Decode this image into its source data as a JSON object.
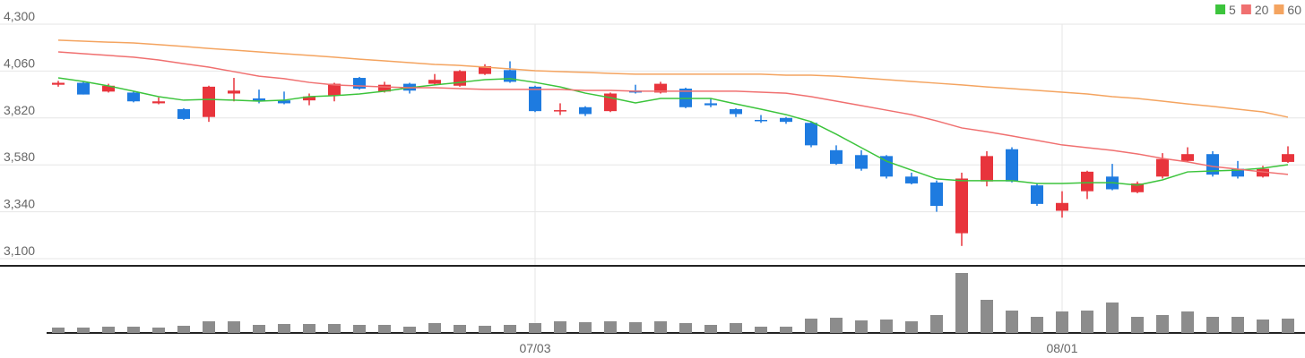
{
  "chart_data": {
    "type": "candlestick",
    "categories": [
      null,
      null,
      null,
      null,
      null,
      null,
      null,
      null,
      null,
      null,
      null,
      null,
      null,
      null,
      null,
      null,
      null,
      null,
      null,
      "07/03",
      null,
      null,
      null,
      null,
      null,
      null,
      null,
      null,
      null,
      null,
      null,
      null,
      null,
      null,
      null,
      null,
      null,
      null,
      null,
      null,
      "08/01",
      null,
      null,
      null,
      null,
      null,
      null,
      null,
      null,
      null
    ],
    "open": [
      3990,
      4000,
      3955,
      3950,
      3895,
      3865,
      3825,
      3945,
      3920,
      3910,
      3910,
      3935,
      4025,
      3955,
      3995,
      3995,
      3985,
      4045,
      4065,
      3980,
      3855,
      3875,
      3855,
      3960,
      3950,
      3970,
      3895,
      3865,
      3810,
      3820,
      3795,
      3655,
      3630,
      3625,
      3520,
      3490,
      3230,
      3495,
      3660,
      3475,
      3345,
      3445,
      3520,
      3440,
      3520,
      3600,
      3635,
      3560,
      3520,
      3595
    ],
    "high": [
      4010,
      4005,
      3995,
      3955,
      3925,
      3870,
      3985,
      4025,
      3965,
      3955,
      3945,
      4000,
      4030,
      4005,
      4000,
      4045,
      4065,
      4095,
      4110,
      3985,
      3895,
      3880,
      3950,
      3990,
      4005,
      3975,
      3920,
      3870,
      3835,
      3825,
      3800,
      3680,
      3655,
      3630,
      3540,
      3500,
      3540,
      3650,
      3670,
      3485,
      3445,
      3550,
      3585,
      3495,
      3640,
      3670,
      3650,
      3600,
      3575,
      3675
    ],
    "low": [
      3980,
      3940,
      3950,
      3900,
      3890,
      3810,
      3800,
      3905,
      3895,
      3890,
      3885,
      3905,
      3965,
      3950,
      3945,
      3990,
      3980,
      4040,
      4000,
      3850,
      3835,
      3830,
      3850,
      3945,
      3945,
      3870,
      3875,
      3825,
      3795,
      3790,
      3670,
      3580,
      3550,
      3510,
      3480,
      3340,
      3165,
      3470,
      3490,
      3370,
      3310,
      3405,
      3450,
      3435,
      3510,
      3595,
      3520,
      3510,
      3515,
      3590
    ],
    "close": [
      4000,
      3940,
      3985,
      3905,
      3905,
      3815,
      3980,
      3960,
      3905,
      3895,
      3930,
      3995,
      3970,
      3990,
      3960,
      4015,
      4060,
      4085,
      4005,
      3855,
      3860,
      3840,
      3945,
      3950,
      3995,
      3875,
      3885,
      3840,
      3805,
      3800,
      3680,
      3585,
      3560,
      3520,
      3485,
      3370,
      3510,
      3625,
      3495,
      3380,
      3385,
      3545,
      3455,
      3485,
      3610,
      3635,
      3530,
      3520,
      3560,
      3635
    ],
    "up_color": "#e8343c",
    "down_color": "#1e7be0",
    "ylim": [
      3100,
      4300
    ],
    "yticks": [
      {
        "value": 4300,
        "label": "4,300"
      },
      {
        "value": 4060,
        "label": "4,060"
      },
      {
        "value": 3820,
        "label": "3,820"
      },
      {
        "value": 3580,
        "label": "3,580"
      },
      {
        "value": 3340,
        "label": "3,340"
      },
      {
        "value": 3100,
        "label": "3,100"
      }
    ],
    "grid": true,
    "legend": "top-right",
    "series": [
      {
        "name": "5",
        "color": "#3cc43c",
        "values": [
          4025,
          4007,
          3984,
          3957,
          3929,
          3911,
          3915,
          3911,
          3906,
          3911,
          3929,
          3934,
          3943,
          3957,
          3975,
          3989,
          4002,
          4016,
          4021,
          4002,
          3979,
          3947,
          3924,
          3897,
          3920,
          3920,
          3920,
          3892,
          3865,
          3837,
          3801,
          3737,
          3668,
          3599,
          3553,
          3508,
          3499,
          3499,
          3499,
          3485,
          3485,
          3489,
          3489,
          3476,
          3503,
          3544,
          3549,
          3553,
          3563,
          3581
        ]
      },
      {
        "name": "20",
        "color": "#f07070",
        "values": [
          4158,
          4149,
          4140,
          4131,
          4117,
          4098,
          4080,
          4057,
          4034,
          4021,
          4002,
          3989,
          3984,
          3979,
          3975,
          3975,
          3970,
          3966,
          3966,
          3966,
          3966,
          3961,
          3961,
          3957,
          3957,
          3957,
          3957,
          3957,
          3952,
          3947,
          3929,
          3906,
          3883,
          3860,
          3837,
          3805,
          3769,
          3750,
          3728,
          3705,
          3682,
          3668,
          3654,
          3636,
          3613,
          3595,
          3572,
          3558,
          3544,
          3531
        ]
      },
      {
        "name": "60",
        "color": "#f4a460",
        "values": [
          4218,
          4213,
          4208,
          4204,
          4195,
          4186,
          4176,
          4167,
          4158,
          4149,
          4140,
          4131,
          4121,
          4112,
          4103,
          4094,
          4089,
          4080,
          4071,
          4062,
          4057,
          4053,
          4048,
          4044,
          4044,
          4044,
          4044,
          4044,
          4044,
          4039,
          4039,
          4034,
          4025,
          4016,
          4007,
          3998,
          3989,
          3979,
          3970,
          3961,
          3952,
          3943,
          3929,
          3920,
          3906,
          3892,
          3879,
          3865,
          3851,
          3824
        ]
      }
    ],
    "volume": {
      "color": "#8c8c8c",
      "ylim": [
        0,
        70
      ],
      "values": [
        6,
        6,
        7,
        7,
        6,
        8,
        13,
        13,
        9,
        10,
        10,
        10,
        9,
        9,
        7,
        11,
        9,
        8,
        9,
        11,
        13,
        12,
        13,
        12,
        13,
        11,
        9,
        11,
        7,
        7,
        16,
        17,
        14,
        15,
        13,
        20,
        67,
        37,
        25,
        18,
        24,
        25,
        34,
        18,
        20,
        24,
        18,
        18,
        15,
        16
      ]
    }
  }
}
